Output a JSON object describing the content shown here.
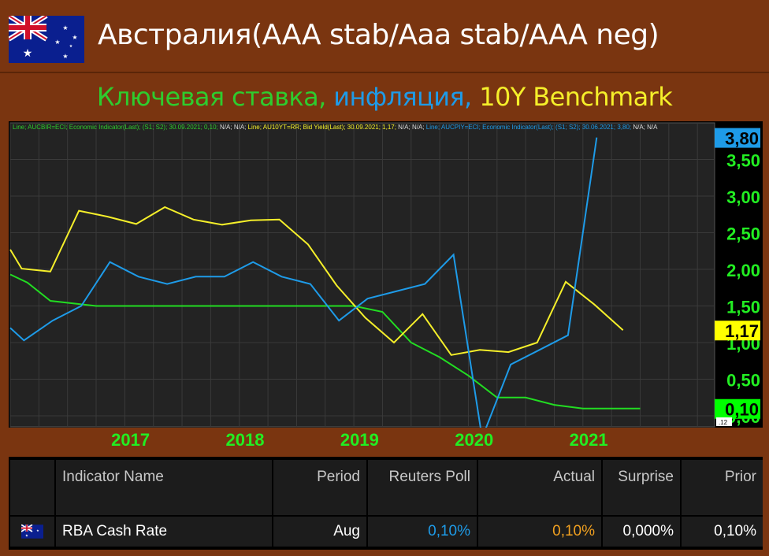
{
  "header": {
    "title": "Австралия(AAA stab/Aaa stab/AAA neg)",
    "subtitle_parts": [
      {
        "text": "Ключевая ставка, ",
        "color": "#2ecc2e"
      },
      {
        "text": "инфляция, ",
        "color": "#1e9be8"
      },
      {
        "text": "10Y Benchmark",
        "color": "#f5ef2a"
      }
    ]
  },
  "chart_data": {
    "type": "line",
    "legend_text": [
      {
        "text": "Line; AUCBIR=ECI; Economic Indicator(Last); (S1; S2); 30.09.2021; 0,10;",
        "color": "#2ecc2e"
      },
      {
        "text": " N/A; N/A; ",
        "color": "#dddddd"
      },
      {
        "text": "Line; AU10YT=RR; Bid Yield(Last); 30.09.2021; 1,17;",
        "color": "#f5ef2a"
      },
      {
        "text": " N/A; N/A; ",
        "color": "#dddddd"
      },
      {
        "text": "Line; AUCPIY=ECI; Economic Indicator(Last); (S1; S2); 30.06.2021; 3,80;",
        "color": "#1e9be8"
      },
      {
        "text": " N/A; N/A",
        "color": "#dddddd"
      }
    ],
    "x_ticks": [
      "2017",
      "2018",
      "2019",
      "2020",
      "2021"
    ],
    "y_ticks": [
      "3,50",
      "3,00",
      "2,50",
      "2,00",
      "1,50",
      "1,00",
      "0,50",
      "0,00"
    ],
    "ylim": [
      -0.15,
      4.0
    ],
    "xlim": [
      2016.0,
      2022.15
    ],
    "series": [
      {
        "name": "AUCBIR=ECI",
        "color": "#22dd22",
        "points": [
          [
            2016.0,
            1.93
          ],
          [
            2016.15,
            1.82
          ],
          [
            2016.35,
            1.57
          ],
          [
            2016.75,
            1.5
          ],
          [
            2017.0,
            1.5
          ],
          [
            2018.0,
            1.5
          ],
          [
            2019.0,
            1.5
          ],
          [
            2019.25,
            1.42
          ],
          [
            2019.5,
            1.0
          ],
          [
            2019.75,
            0.8
          ],
          [
            2020.0,
            0.55
          ],
          [
            2020.25,
            0.25
          ],
          [
            2020.5,
            0.25
          ],
          [
            2020.75,
            0.15
          ],
          [
            2021.0,
            0.1
          ],
          [
            2021.5,
            0.1
          ]
        ]
      },
      {
        "name": "AU10YT=RR",
        "color": "#f5ef2a",
        "points": [
          [
            2016.0,
            2.27
          ],
          [
            2016.1,
            2.01
          ],
          [
            2016.35,
            1.97
          ],
          [
            2016.6,
            2.8
          ],
          [
            2016.85,
            2.72
          ],
          [
            2017.1,
            2.62
          ],
          [
            2017.35,
            2.85
          ],
          [
            2017.6,
            2.68
          ],
          [
            2017.85,
            2.61
          ],
          [
            2018.1,
            2.67
          ],
          [
            2018.35,
            2.68
          ],
          [
            2018.6,
            2.34
          ],
          [
            2018.85,
            1.78
          ],
          [
            2019.1,
            1.34
          ],
          [
            2019.35,
            1.0
          ],
          [
            2019.6,
            1.39
          ],
          [
            2019.85,
            0.83
          ],
          [
            2020.1,
            0.9
          ],
          [
            2020.35,
            0.87
          ],
          [
            2020.6,
            1.0
          ],
          [
            2020.85,
            1.83
          ],
          [
            2021.1,
            1.52
          ],
          [
            2021.35,
            1.17
          ]
        ]
      },
      {
        "name": "AUCPIY=ECI",
        "color": "#1e9be8",
        "points": [
          [
            2016.0,
            1.2
          ],
          [
            2016.12,
            1.03
          ],
          [
            2016.37,
            1.3
          ],
          [
            2016.62,
            1.5
          ],
          [
            2016.87,
            2.1
          ],
          [
            2017.12,
            1.9
          ],
          [
            2017.37,
            1.8
          ],
          [
            2017.62,
            1.9
          ],
          [
            2017.87,
            1.9
          ],
          [
            2018.12,
            2.1
          ],
          [
            2018.37,
            1.9
          ],
          [
            2018.62,
            1.8
          ],
          [
            2018.87,
            1.3
          ],
          [
            2019.12,
            1.6
          ],
          [
            2019.37,
            1.7
          ],
          [
            2019.62,
            1.8
          ],
          [
            2019.87,
            2.2
          ],
          [
            2020.12,
            -0.3
          ],
          [
            2020.37,
            0.7
          ],
          [
            2020.62,
            0.9
          ],
          [
            2020.87,
            1.1
          ],
          [
            2021.12,
            3.8
          ]
        ]
      }
    ],
    "last_value_tags": [
      {
        "text": "3,80",
        "value": 3.8,
        "bg": "#1e9be8",
        "color": "#000000"
      },
      {
        "text": "1,17",
        "value": 1.17,
        "bg": "#ffff00",
        "color": "#000000"
      },
      {
        "text": "0,10",
        "value": 0.1,
        "bg": "#00ff00",
        "color": "#000000"
      }
    ],
    "tiny_tick": ".12"
  },
  "table": {
    "headers": [
      "Indicator Name",
      "Period",
      "Reuters Poll",
      "Actual",
      "Surprise",
      "Prior"
    ],
    "row": {
      "name": "RBA Cash Rate",
      "period": "Aug",
      "poll": "0,10%",
      "actual": "0,10%",
      "surprise": "0,000%",
      "prior": "0,10%"
    },
    "colors": {
      "poll": "#1e9be8",
      "actual": "#f0a020"
    }
  }
}
